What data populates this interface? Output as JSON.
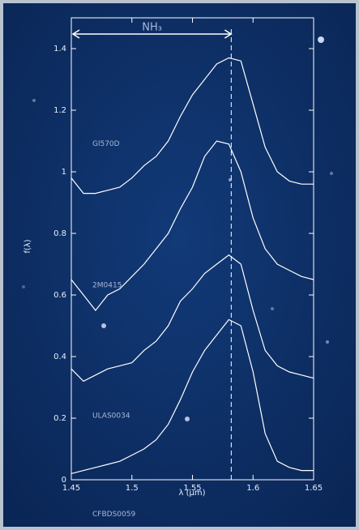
{
  "chart_data": {
    "type": "line",
    "x_label": "λ (μm)",
    "y_label": "f(λ)",
    "annotation": "NH₃",
    "reference_line": 1.582,
    "x": [
      1.45,
      1.46,
      1.47,
      1.48,
      1.49,
      1.5,
      1.51,
      1.52,
      1.53,
      1.54,
      1.55,
      1.56,
      1.57,
      1.58,
      1.59,
      1.6,
      1.61,
      1.62,
      1.63,
      1.64,
      1.65
    ],
    "series": [
      {
        "name": "Gl570D",
        "color": "#ffffff",
        "values": [
          0.98,
          0.93,
          0.93,
          0.94,
          0.95,
          0.98,
          1.02,
          1.05,
          1.1,
          1.18,
          1.25,
          1.3,
          1.35,
          1.37,
          1.36,
          1.22,
          1.08,
          1.0,
          0.97,
          0.96,
          0.96
        ]
      },
      {
        "name": "2M0415",
        "color": "#ffffff",
        "values": [
          0.65,
          0.6,
          0.55,
          0.6,
          0.62,
          0.66,
          0.7,
          0.75,
          0.8,
          0.88,
          0.95,
          1.05,
          1.1,
          1.09,
          1.0,
          0.85,
          0.75,
          0.7,
          0.68,
          0.66,
          0.65
        ]
      },
      {
        "name": "ULAS0034",
        "color": "#ffffff",
        "values": [
          0.36,
          0.32,
          0.34,
          0.36,
          0.37,
          0.38,
          0.42,
          0.45,
          0.5,
          0.58,
          0.62,
          0.67,
          0.7,
          0.73,
          0.7,
          0.55,
          0.42,
          0.37,
          0.35,
          0.34,
          0.33
        ]
      },
      {
        "name": "CFBDS0059",
        "color": "#ffffff",
        "values": [
          0.02,
          0.03,
          0.04,
          0.05,
          0.06,
          0.08,
          0.1,
          0.13,
          0.18,
          0.26,
          0.35,
          0.42,
          0.47,
          0.52,
          0.5,
          0.35,
          0.15,
          0.06,
          0.04,
          0.03,
          0.03
        ]
      }
    ],
    "xlim": [
      1.45,
      1.65
    ],
    "ylim": [
      0,
      1.5
    ],
    "xticks": [
      1.45,
      1.5,
      1.55,
      1.6,
      1.65
    ],
    "yticks": [
      0,
      0.2,
      0.4,
      0.6,
      0.8,
      1,
      1.2,
      1.4
    ]
  }
}
